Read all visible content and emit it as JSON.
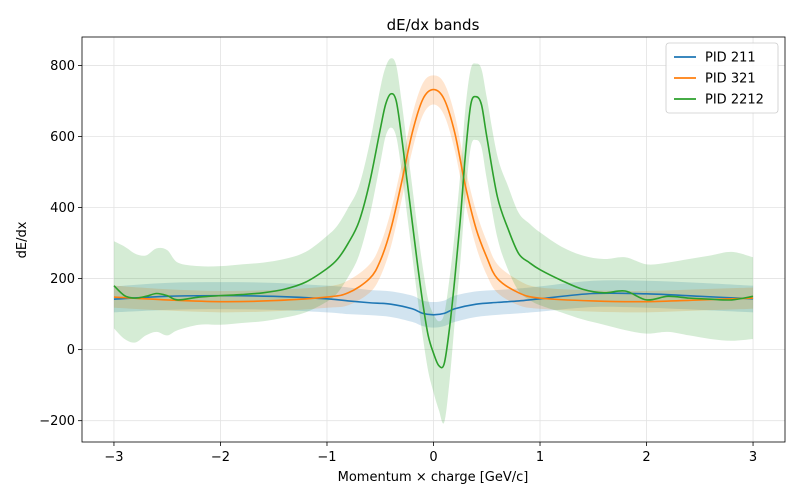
{
  "chart_data": {
    "type": "line",
    "title": "dE/dx bands",
    "xlabel": "Momentum × charge [GeV/c]",
    "ylabel": "dE/dx",
    "xlim": [
      -3.3,
      3.3
    ],
    "ylim": [
      -260,
      880
    ],
    "xticks": [
      -3,
      -2,
      -1,
      0,
      1,
      2,
      3
    ],
    "xtick_labels": [
      "−3",
      "−2",
      "−1",
      "0",
      "1",
      "2",
      "3"
    ],
    "yticks": [
      -200,
      0,
      200,
      400,
      600,
      800
    ],
    "ytick_labels": [
      "−200",
      "0",
      "200",
      "400",
      "600",
      "800"
    ],
    "grid": true,
    "legend_position": "top-right",
    "series": [
      {
        "name": "PID 211",
        "color": "#1f77b4",
        "x": [
          -3.0,
          -2.5,
          -2.0,
          -1.5,
          -1.0,
          -0.8,
          -0.6,
          -0.4,
          -0.2,
          -0.1,
          0.0,
          0.1,
          0.2,
          0.4,
          0.6,
          0.8,
          1.0,
          1.5,
          2.0,
          2.5,
          3.0
        ],
        "y": [
          142,
          150,
          152,
          150,
          143,
          137,
          132,
          128,
          115,
          102,
          98,
          102,
          115,
          128,
          133,
          137,
          143,
          158,
          157,
          150,
          143
        ],
        "lower": [
          105,
          112,
          114,
          112,
          105,
          100,
          97,
          92,
          78,
          66,
          62,
          66,
          78,
          92,
          98,
          102,
          107,
          120,
          118,
          112,
          105
        ],
        "upper": [
          178,
          188,
          190,
          188,
          180,
          175,
          168,
          164,
          152,
          138,
          134,
          138,
          152,
          164,
          168,
          172,
          178,
          194,
          194,
          188,
          180
        ]
      },
      {
        "name": "PID 321",
        "color": "#ff7f0e",
        "x": [
          -3.0,
          -2.5,
          -2.0,
          -1.5,
          -1.0,
          -0.8,
          -0.6,
          -0.5,
          -0.4,
          -0.3,
          -0.2,
          -0.1,
          0.0,
          0.1,
          0.2,
          0.3,
          0.4,
          0.5,
          0.6,
          0.8,
          1.0,
          1.5,
          2.0,
          2.5,
          3.0
        ],
        "y": [
          148,
          140,
          135,
          138,
          148,
          160,
          200,
          250,
          340,
          470,
          610,
          705,
          732,
          705,
          610,
          460,
          340,
          260,
          200,
          160,
          145,
          137,
          135,
          140,
          145
        ],
        "lower": [
          118,
          110,
          105,
          108,
          118,
          125,
          160,
          205,
          290,
          420,
          560,
          660,
          690,
          660,
          560,
          410,
          290,
          210,
          160,
          125,
          115,
          107,
          105,
          110,
          115
        ],
        "upper": [
          180,
          170,
          165,
          168,
          178,
          195,
          240,
          295,
          390,
          520,
          660,
          750,
          772,
          750,
          660,
          510,
          390,
          305,
          240,
          195,
          175,
          167,
          165,
          170,
          175
        ]
      },
      {
        "name": "PID 2212",
        "color": "#2ca02c",
        "x": [
          -3.0,
          -2.9,
          -2.8,
          -2.7,
          -2.6,
          -2.5,
          -2.4,
          -2.2,
          -2.0,
          -1.8,
          -1.6,
          -1.4,
          -1.2,
          -1.0,
          -0.9,
          -0.8,
          -0.7,
          -0.6,
          -0.5,
          -0.45,
          -0.4,
          -0.35,
          -0.3,
          -0.25,
          -0.2,
          -0.15,
          -0.1,
          -0.05,
          0.0,
          0.05,
          0.1,
          0.15,
          0.2,
          0.25,
          0.3,
          0.35,
          0.4,
          0.45,
          0.5,
          0.6,
          0.7,
          0.8,
          0.9,
          1.0,
          1.2,
          1.4,
          1.6,
          1.8,
          2.0,
          2.2,
          2.4,
          2.6,
          2.8,
          3.0
        ],
        "y": [
          180,
          152,
          145,
          150,
          158,
          152,
          140,
          148,
          152,
          155,
          160,
          170,
          190,
          228,
          255,
          300,
          360,
          470,
          620,
          690,
          720,
          700,
          600,
          480,
          360,
          240,
          130,
          40,
          -10,
          -45,
          -40,
          60,
          200,
          360,
          550,
          690,
          712,
          690,
          600,
          430,
          340,
          270,
          245,
          225,
          195,
          170,
          160,
          165,
          140,
          150,
          145,
          142,
          140,
          150
        ],
        "lower": [
          60,
          30,
          20,
          40,
          50,
          40,
          55,
          70,
          70,
          75,
          80,
          90,
          105,
          135,
          160,
          205,
          265,
          375,
          525,
          600,
          625,
          600,
          505,
          385,
          265,
          145,
          35,
          -60,
          -120,
          -170,
          -205,
          -90,
          80,
          240,
          430,
          570,
          590,
          570,
          480,
          315,
          225,
          165,
          140,
          125,
          105,
          85,
          70,
          55,
          45,
          50,
          40,
          30,
          25,
          30
        ],
        "upper": [
          305,
          290,
          270,
          265,
          285,
          280,
          245,
          235,
          235,
          240,
          245,
          255,
          275,
          320,
          350,
          400,
          460,
          580,
          735,
          795,
          820,
          800,
          700,
          580,
          460,
          340,
          230,
          140,
          100,
          80,
          100,
          200,
          330,
          490,
          680,
          790,
          805,
          790,
          710,
          545,
          460,
          385,
          355,
          330,
          290,
          265,
          255,
          260,
          240,
          245,
          255,
          265,
          275,
          260
        ]
      }
    ]
  }
}
